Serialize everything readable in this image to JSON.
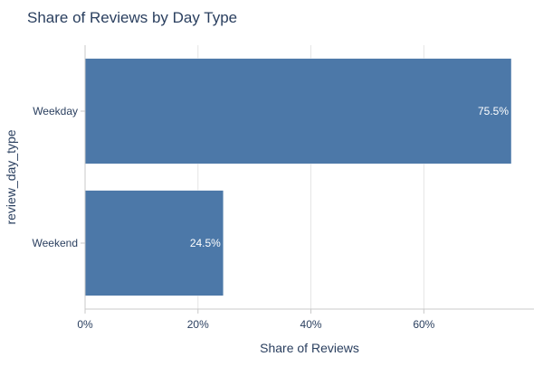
{
  "chart_data": {
    "type": "bar",
    "orientation": "horizontal",
    "title": "Share of Reviews by Day Type",
    "xlabel": "Share of Reviews",
    "ylabel": "review_day_type",
    "categories": [
      "Weekday",
      "Weekend"
    ],
    "values": [
      75.5,
      24.5
    ],
    "data_labels": [
      "75.5%",
      "24.5%"
    ],
    "xlim": [
      0,
      79.5
    ],
    "x_ticks": [
      0,
      20,
      40,
      60
    ],
    "x_tick_labels": [
      "0%",
      "20%",
      "40%",
      "60%"
    ],
    "grid": true,
    "bar_color": "#4c78a8",
    "legend": "none"
  }
}
